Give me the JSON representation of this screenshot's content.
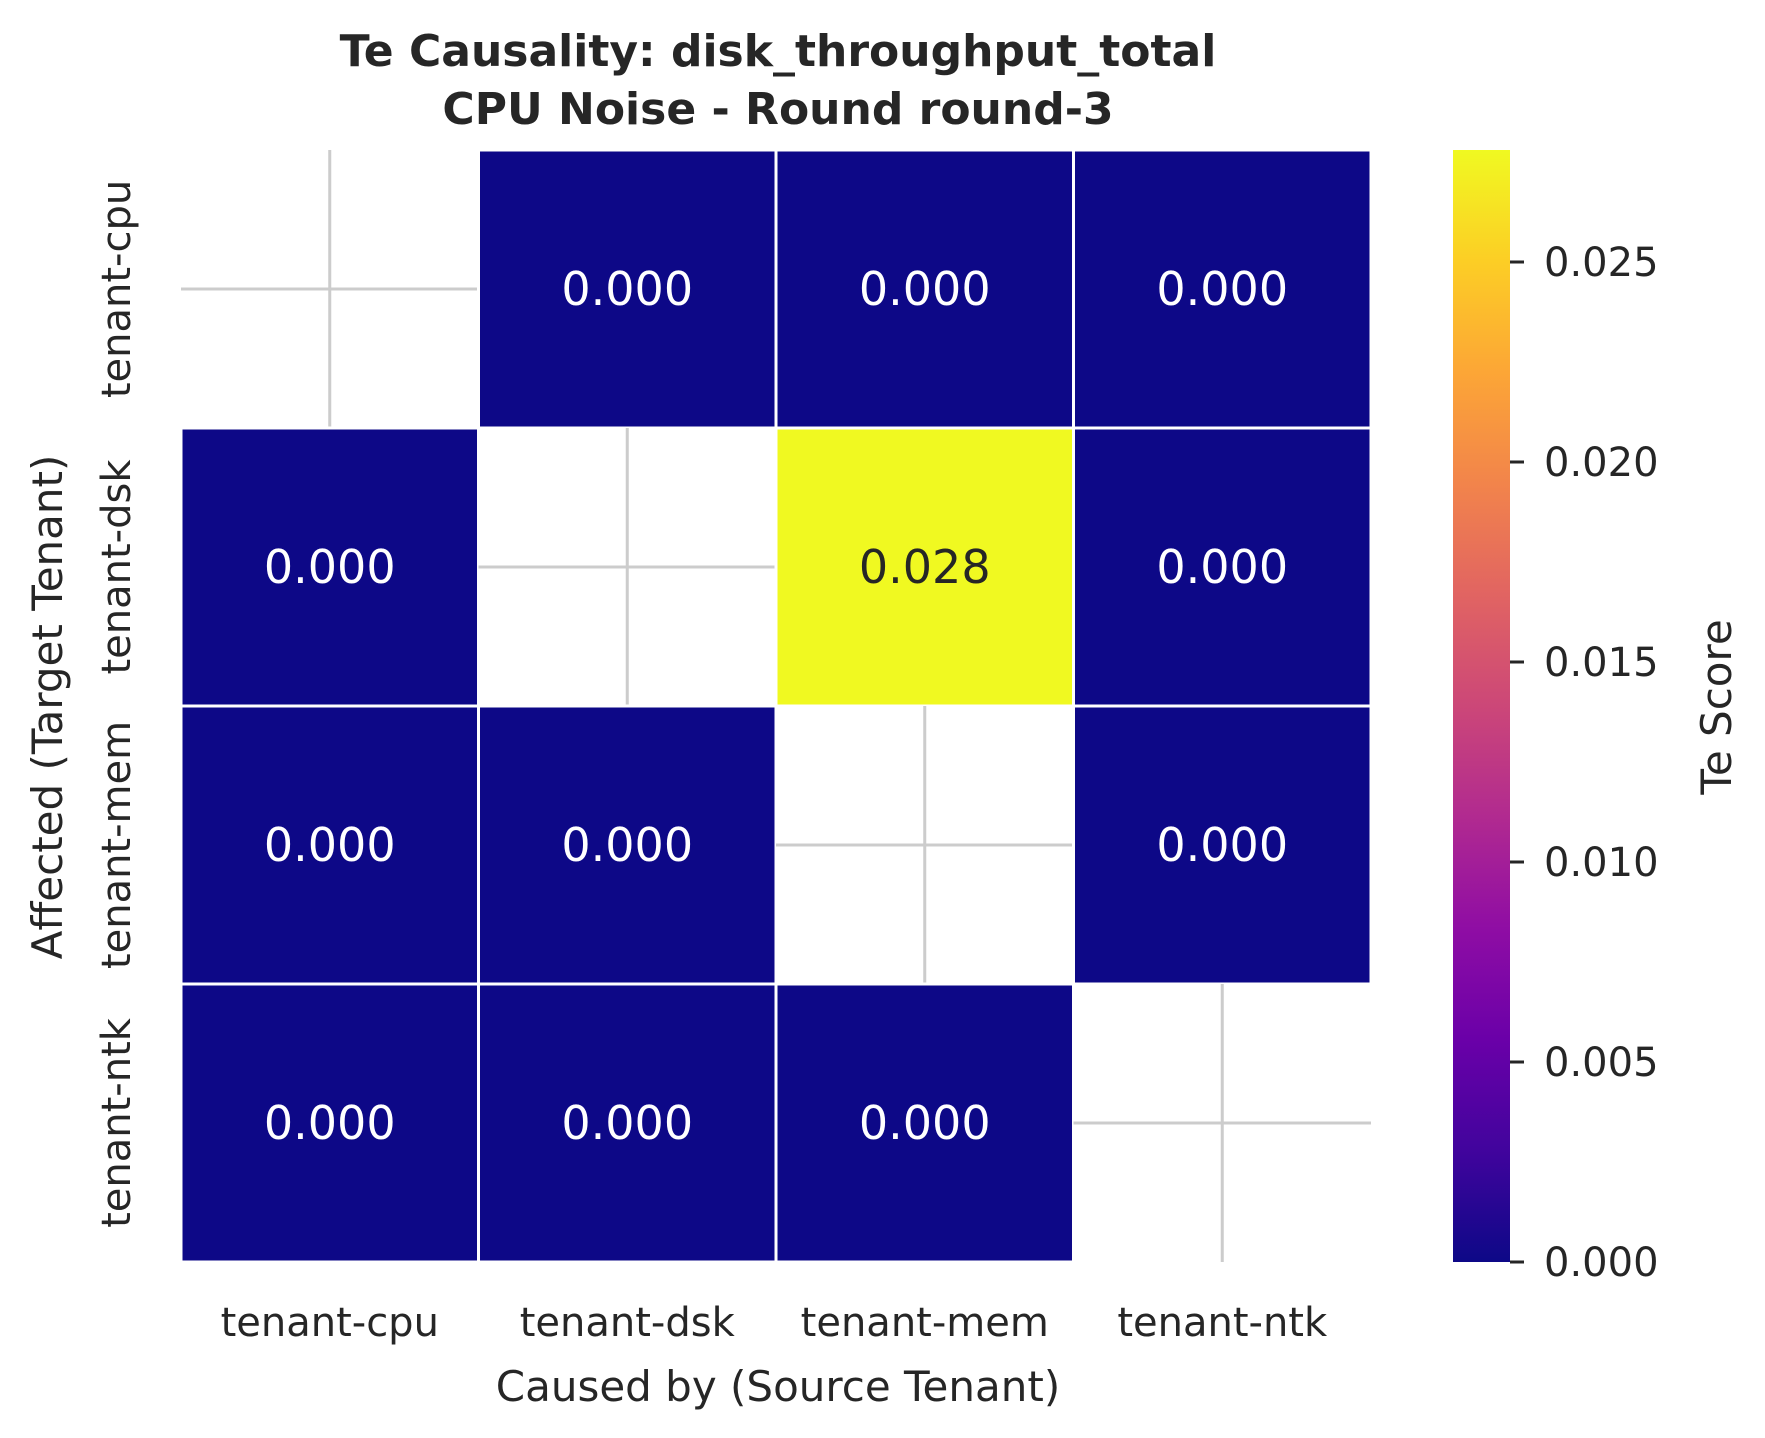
{
  "chart_data": {
    "type": "heatmap",
    "title_line1": "Te Causality: disk_throughput_total",
    "title_line2": "CPU Noise - Round round-3",
    "xlabel": "Caused by (Source Tenant)",
    "ylabel": "Affected (Target Tenant)",
    "x_categories": [
      "tenant-cpu",
      "tenant-dsk",
      "tenant-mem",
      "tenant-ntk"
    ],
    "y_categories": [
      "tenant-cpu",
      "tenant-dsk",
      "tenant-mem",
      "tenant-ntk"
    ],
    "values": [
      [
        null,
        0.0,
        0.0,
        0.0
      ],
      [
        0.0,
        null,
        0.028,
        0.0
      ],
      [
        0.0,
        0.0,
        null,
        0.0
      ],
      [
        0.0,
        0.0,
        0.0,
        null
      ]
    ],
    "annotations": [
      [
        null,
        "0.000",
        "0.000",
        "0.000"
      ],
      [
        "0.000",
        null,
        "0.028",
        "0.000"
      ],
      [
        "0.000",
        "0.000",
        null,
        "0.000"
      ],
      [
        "0.000",
        "0.000",
        "0.000",
        null
      ]
    ],
    "colormap": "plasma",
    "vmin": 0.0,
    "vmax": 0.0278,
    "colorbar": {
      "label": "Te Score",
      "ticks": [
        0.0,
        0.005,
        0.01,
        0.015,
        0.02,
        0.025
      ],
      "tick_labels": [
        "0.000",
        "0.005",
        "0.010",
        "0.015",
        "0.020",
        "0.025"
      ]
    },
    "grid": true
  }
}
